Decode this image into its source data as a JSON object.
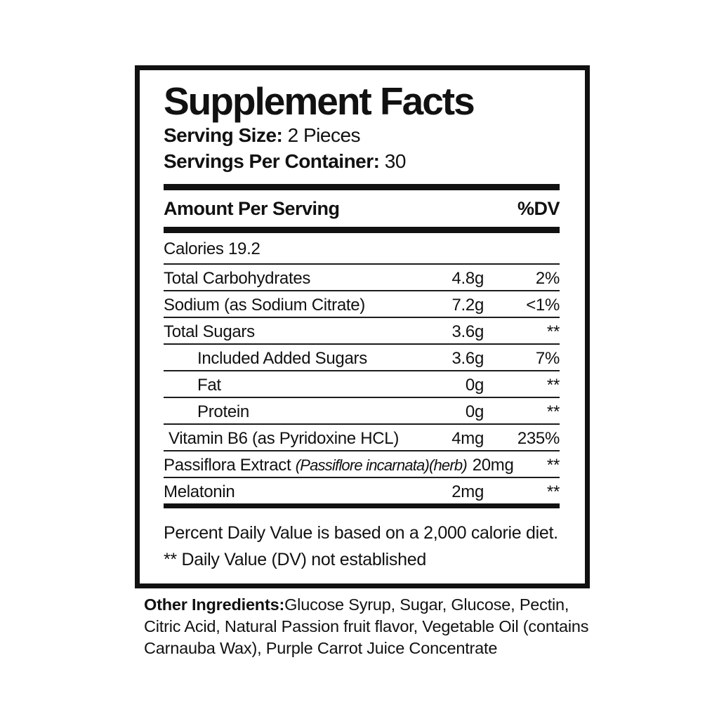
{
  "label": {
    "title": "Supplement Facts",
    "serving_size_label": "Serving Size:",
    "serving_size_value": " 2 Pieces",
    "servings_per_container_label": "Servings Per Container:",
    "servings_per_container_value": " 30",
    "header": {
      "amount_col": "Amount Per Serving",
      "dv_col": "%DV"
    },
    "calories": "Calories 19.2",
    "rows": [
      {
        "name": "Total Carbohydrates",
        "amount": "4.8g",
        "dv": "2%"
      },
      {
        "name": "Sodium (as Sodium Citrate)",
        "amount": "7.2g",
        "dv": "<1%"
      },
      {
        "name": "Total Sugars",
        "amount": "3.6g",
        "dv": "**"
      },
      {
        "name": "Included Added Sugars",
        "amount": "3.6g",
        "dv": "7%"
      },
      {
        "name": "Fat",
        "amount": "0g",
        "dv": "**"
      },
      {
        "name": "Protein",
        "amount": "0g",
        "dv": "**"
      },
      {
        "name": "Vitamin B6 (as Pyridoxine HCL)",
        "amount": "4mg",
        "dv": "235%"
      },
      {
        "name": "Passiflora Extract ",
        "name_italic": "(Passiflore incarnata)(herb)",
        "amount": "20mg",
        "dv": "**"
      },
      {
        "name": "Melatonin",
        "amount": "2mg",
        "dv": "**"
      }
    ],
    "footnotes": {
      "line1": "Percent Daily Value is based on a 2,000 calorie diet.",
      "line2": "** Daily Value (DV) not established"
    },
    "other_ingredients": {
      "label": "Other Ingredients:",
      "text": "Glucose Syrup,  Sugar, Glucose, Pectin, Citric Acid, Natural Passion fruit flavor, Vegetable Oil (contains Carnauba Wax), Purple Carrot Juice Concentrate"
    },
    "colors": {
      "ink": "#111111",
      "background": "#ffffff"
    }
  }
}
